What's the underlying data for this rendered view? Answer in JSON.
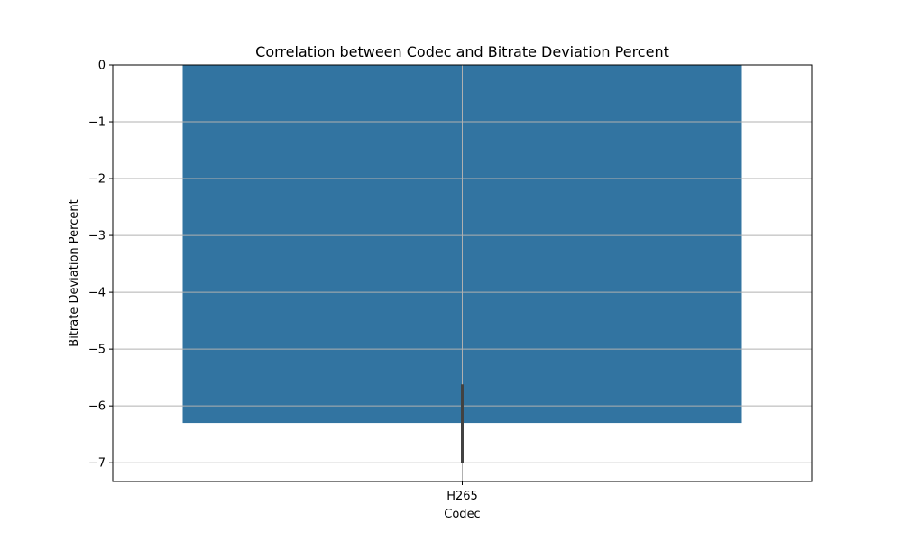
{
  "chart_data": {
    "type": "bar",
    "title": "Correlation between Codec and Bitrate Deviation Percent",
    "xlabel": "Codec",
    "ylabel": "Bitrate Deviation Percent",
    "categories": [
      "H265"
    ],
    "values": [
      -6.3
    ],
    "error_bars": [
      {
        "low": -7.0,
        "high": -5.62
      }
    ],
    "ylim": [
      -7.33,
      0
    ],
    "yticks": [
      0,
      -1,
      -2,
      -3,
      -4,
      -5,
      -6,
      -7
    ],
    "grid": true,
    "bar_color": "#3274a1",
    "errorbar_color": "#424242",
    "grid_color": "#b0b0b0"
  }
}
